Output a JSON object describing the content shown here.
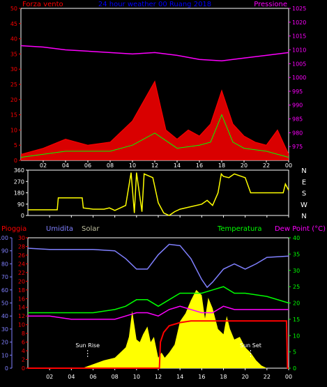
{
  "chart_data": [
    {
      "type": "line",
      "title": "24 hour weather 00 Ruang 2018",
      "colors": {
        "wind": "#ff0000",
        "gust": "#ffffff",
        "green": "#00ff00",
        "pressure": "#ff00ff",
        "title": "#0000ff",
        "axes": "#ffffff"
      },
      "left_label": "Forza vento",
      "right_label": "Pressione",
      "x_ticks": [
        "02",
        "04",
        "06",
        "08",
        "10",
        "12",
        "14",
        "16",
        "18",
        "20",
        "22",
        "00"
      ],
      "ylim_left": [
        0,
        50
      ],
      "yticks_left": [
        0,
        5,
        10,
        15,
        20,
        25,
        30,
        35,
        40,
        45,
        50
      ],
      "ylim_right": [
        970,
        1025
      ],
      "yticks_right": [
        975,
        980,
        985,
        990,
        995,
        1000,
        1005,
        1010,
        1015,
        1020,
        1025
      ],
      "series": [
        {
          "name": "Pressione",
          "axis": "right",
          "x": [
            0,
            2,
            4,
            6,
            8,
            10,
            12,
            14,
            16,
            18,
            20,
            22,
            24
          ],
          "y": [
            1011.5,
            1011,
            1010,
            1009.5,
            1009,
            1008.5,
            1009,
            1008,
            1006.5,
            1006,
            1007,
            1008,
            1009
          ]
        },
        {
          "name": "Forza vento",
          "axis": "left",
          "x": [
            0,
            2,
            4,
            6,
            8,
            10,
            12,
            13,
            14,
            15,
            16,
            17,
            18,
            19,
            20,
            21,
            22,
            23,
            24
          ],
          "y": [
            2,
            4,
            7,
            5,
            6,
            13,
            26,
            10,
            7,
            10,
            8,
            12,
            23,
            12,
            8,
            6,
            5,
            10,
            2
          ]
        },
        {
          "name": "",
          "axis": "left",
          "x": [
            0,
            2,
            4,
            6,
            8,
            10,
            12,
            14,
            16,
            17,
            18,
            19,
            20,
            22,
            24
          ],
          "y": [
            1,
            2,
            3,
            3,
            3,
            5,
            9,
            4,
            5,
            6,
            15,
            6,
            4,
            3,
            1
          ]
        }
      ]
    },
    {
      "type": "line",
      "colors": {
        "line": "#ffff00"
      },
      "ylim": [
        0,
        360
      ],
      "yticks": [
        0,
        90,
        180,
        270,
        360
      ],
      "right_labels": [
        "N",
        "W",
        "S",
        "E",
        "N"
      ],
      "x_ticks": [
        "02",
        "04",
        "06",
        "08",
        "10",
        "12",
        "14",
        "16",
        "18",
        "20",
        "22",
        "00"
      ],
      "series": [
        {
          "name": "",
          "x": [
            0,
            2.7,
            2.8,
            5,
            5.1,
            6,
            7,
            7.5,
            8,
            9,
            9.5,
            9.8,
            10,
            10.5,
            10.7,
            11.5,
            12,
            12.5,
            13,
            13.5,
            14,
            16,
            16.5,
            17,
            17.5,
            17.8,
            18,
            18.5,
            19,
            20,
            20.5,
            22,
            23.5,
            23.7,
            24
          ],
          "y": [
            45,
            45,
            140,
            140,
            60,
            50,
            50,
            60,
            40,
            80,
            340,
            20,
            340,
            30,
            330,
            300,
            100,
            20,
            0,
            30,
            50,
            90,
            120,
            80,
            180,
            330,
            310,
            300,
            330,
            300,
            180,
            180,
            180,
            250,
            200
          ]
        }
      ]
    },
    {
      "type": "area",
      "colors": {
        "solar": "#ffff00",
        "humidity": "#8080ff",
        "temperature": "#00ff00",
        "dewpoint": "#ff00ff",
        "rain": "#ff0000"
      },
      "labels": {
        "rain": "Pioggia",
        "humidity": "Umidita",
        "solar": "Solar",
        "temperature": "Temperatura",
        "dewpoint": "Dew Point (°C)"
      },
      "annotations": [
        "Sun Rise",
        "Sun Set"
      ],
      "annotation_x": [
        5.5,
        20.5
      ],
      "x_ticks": [
        "02",
        "04",
        "06",
        "08",
        "10",
        "12",
        "14",
        "16",
        "18",
        "20",
        "22",
        "00"
      ],
      "yticks_humidity": [
        0,
        10,
        20,
        30,
        40,
        50,
        60,
        70,
        80,
        90,
        100
      ],
      "ylim_humidity": [
        0,
        100
      ],
      "yticks_rain": [
        0,
        2,
        4,
        6,
        8,
        10,
        12,
        14,
        16,
        18,
        20,
        22,
        24,
        26,
        28,
        30
      ],
      "ylim_temp": [
        0,
        40
      ],
      "yticks_temp": [
        0,
        5,
        10,
        15,
        20,
        25,
        30,
        35,
        40
      ],
      "series": [
        {
          "name": "Umidita",
          "axis": "humidity",
          "x": [
            0,
            2,
            4,
            6,
            8,
            9,
            10,
            11,
            12,
            13,
            14,
            15,
            16,
            16.5,
            17,
            18,
            19,
            20,
            21,
            22,
            24
          ],
          "y": [
            92,
            91,
            91,
            91,
            90,
            84,
            76,
            76,
            87,
            95,
            94,
            84,
            68,
            62,
            66,
            76,
            80,
            76,
            80,
            85,
            86
          ]
        },
        {
          "name": "Temperatura",
          "axis": "temp",
          "x": [
            0,
            2,
            4,
            6,
            8,
            9,
            10,
            11,
            12,
            13,
            14,
            15,
            16,
            17,
            18,
            19,
            20,
            22,
            24
          ],
          "y": [
            17,
            17,
            17,
            17,
            18,
            19,
            21,
            21,
            19,
            21,
            23,
            23,
            23,
            24,
            25,
            23,
            23,
            22,
            20
          ]
        },
        {
          "name": "Dew Point (°C)",
          "axis": "temp",
          "x": [
            0,
            2,
            4,
            6,
            8,
            9,
            10,
            11,
            12,
            13,
            14,
            15,
            16,
            17,
            18,
            19,
            20,
            22,
            24
          ],
          "y": [
            16,
            16,
            15,
            15,
            15,
            16,
            17,
            17,
            16,
            18,
            19,
            18,
            17,
            17,
            19,
            18,
            18,
            18,
            18
          ]
        },
        {
          "name": "Pioggia",
          "axis": "temp",
          "x": [
            0,
            12.1,
            12.2,
            12.5,
            13,
            14,
            15,
            16,
            18,
            20,
            23.8,
            23.9,
            24
          ],
          "y": [
            0,
            0,
            8,
            11,
            13,
            14,
            14.5,
            14.5,
            14.5,
            14.5,
            14.5,
            0,
            0
          ]
        },
        {
          "name": "Solar",
          "axis": "humidity",
          "x": [
            5,
            6,
            7,
            8,
            8.5,
            9,
            9.3,
            9.6,
            10,
            10.3,
            10.6,
            11,
            11.3,
            11.6,
            12,
            12.3,
            12.6,
            13,
            13.5,
            14,
            14.5,
            15,
            15.5,
            16,
            16.3,
            16.6,
            17,
            17.5,
            18,
            18.3,
            18.6,
            19,
            19.5,
            20,
            20.5,
            21,
            21.5,
            22
          ],
          "y": [
            0,
            3,
            6,
            8,
            12,
            16,
            24,
            44,
            22,
            20,
            26,
            32,
            20,
            24,
            8,
            12,
            8,
            12,
            18,
            36,
            42,
            52,
            60,
            56,
            38,
            54,
            46,
            30,
            26,
            40,
            30,
            22,
            24,
            16,
            12,
            6,
            2,
            0
          ]
        }
      ]
    }
  ]
}
